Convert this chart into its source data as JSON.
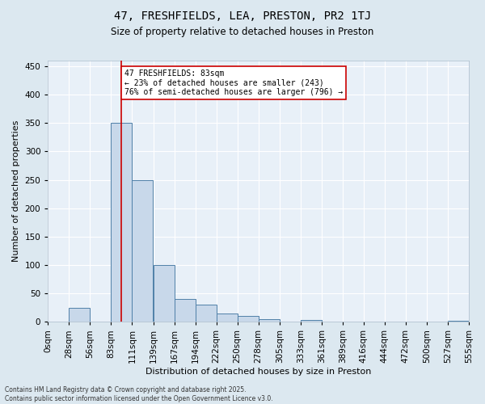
{
  "title": "47, FRESHFIELDS, LEA, PRESTON, PR2 1TJ",
  "subtitle": "Size of property relative to detached houses in Preston",
  "xlabel": "Distribution of detached houses by size in Preston",
  "ylabel": "Number of detached properties",
  "bar_values": [
    0,
    25,
    0,
    350,
    250,
    100,
    40,
    30,
    15,
    10,
    5,
    0,
    3,
    0,
    0,
    0,
    0,
    0,
    0,
    2
  ],
  "categories": [
    "0sqm",
    "28sqm",
    "56sqm",
    "83sqm",
    "111sqm",
    "139sqm",
    "167sqm",
    "194sqm",
    "222sqm",
    "250sqm",
    "278sqm",
    "305sqm",
    "333sqm",
    "361sqm",
    "389sqm",
    "416sqm",
    "444sqm",
    "472sqm",
    "500sqm",
    "527sqm",
    "555sqm"
  ],
  "bar_color": "#c8d8ea",
  "bar_edge_color": "#5080a8",
  "vline_x": 3,
  "vline_color": "#cc0000",
  "ylim": [
    0,
    460
  ],
  "yticks": [
    0,
    50,
    100,
    150,
    200,
    250,
    300,
    350,
    400,
    450
  ],
  "annotation_text": "47 FRESHFIELDS: 83sqm\n← 23% of detached houses are smaller (243)\n76% of semi-detached houses are larger (796) →",
  "annotation_box_color": "#ffffff",
  "annotation_box_edge": "#cc0000",
  "footer_line1": "Contains HM Land Registry data © Crown copyright and database right 2025.",
  "footer_line2": "Contains public sector information licensed under the Open Government Licence v3.0.",
  "bg_color": "#dce8f0",
  "plot_bg_color": "#e8f0f8",
  "grid_color": "#ffffff",
  "title_fontsize": 10,
  "subtitle_fontsize": 8.5,
  "ylabel_fontsize": 8,
  "xlabel_fontsize": 8,
  "tick_fontsize": 7.5,
  "footer_fontsize": 5.5,
  "ann_fontsize": 7
}
